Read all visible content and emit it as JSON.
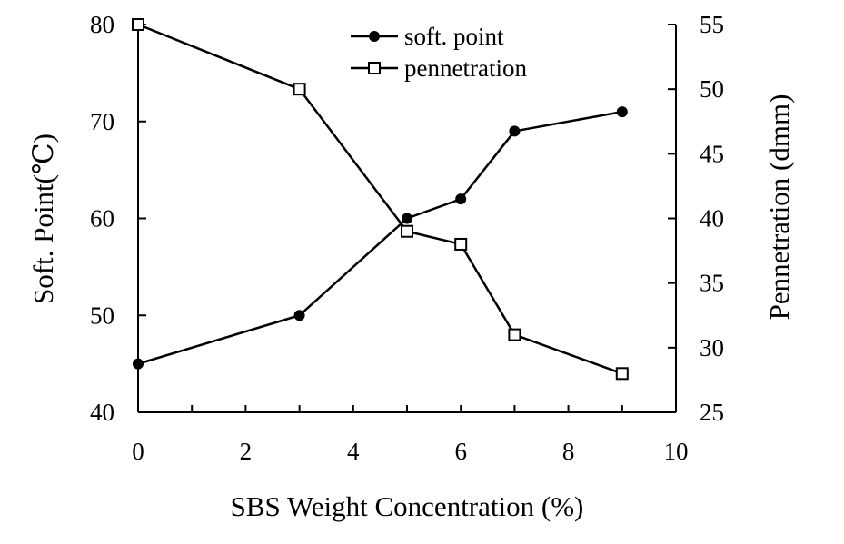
{
  "chart_data": {
    "type": "line",
    "x_axis": {
      "label": "SBS Weight Concentration (%)",
      "range": [
        0,
        10
      ],
      "ticks": [
        "0",
        "2",
        "4",
        "6",
        "8",
        "10"
      ]
    },
    "y_axis_left": {
      "label": "Soft. Point(℃)",
      "range": [
        40,
        80
      ],
      "ticks": [
        "40",
        "50",
        "60",
        "70",
        "80"
      ]
    },
    "y_axis_right": {
      "label": "Pennetration (dmm)",
      "range": [
        25,
        55
      ],
      "ticks": [
        "25",
        "30",
        "35",
        "40",
        "45",
        "50",
        "55"
      ]
    },
    "series": [
      {
        "name": "soft. point",
        "axis": "left",
        "marker": "filled-circle",
        "color": "#000000",
        "x": [
          0,
          3,
          5,
          6,
          7,
          9
        ],
        "y": [
          45,
          50,
          60,
          62,
          69,
          71
        ]
      },
      {
        "name": "pennetration",
        "axis": "right",
        "marker": "open-square",
        "color": "#000000",
        "x": [
          0,
          3,
          5,
          6,
          7,
          9
        ],
        "y": [
          55,
          50,
          39,
          38,
          31,
          28
        ]
      }
    ],
    "legend": {
      "position": "top-center",
      "entries": [
        "soft. point",
        "pennetration"
      ]
    },
    "grid": false
  }
}
